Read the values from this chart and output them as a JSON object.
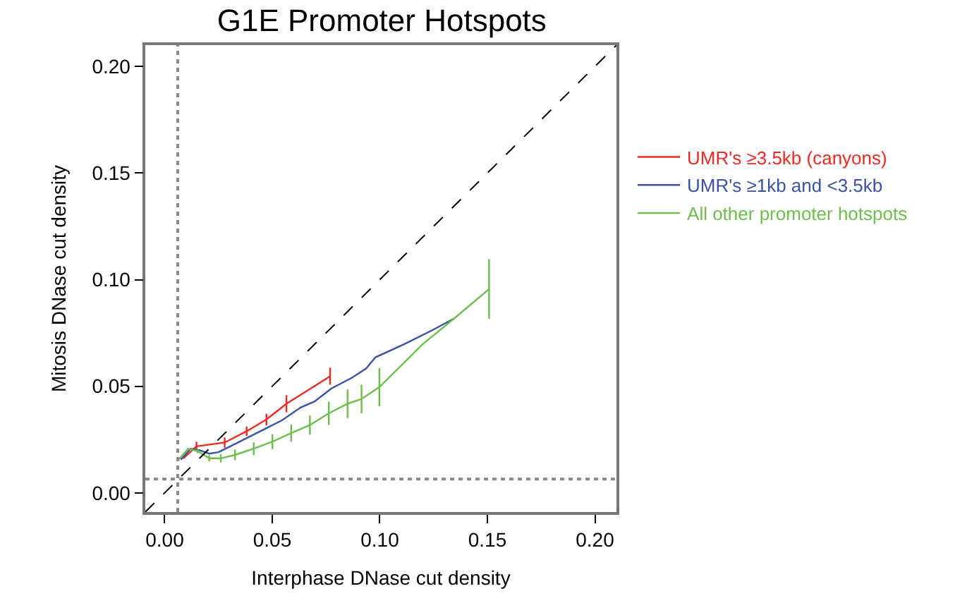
{
  "chart_data": {
    "type": "line",
    "title": "G1E Promoter Hotspots",
    "xlabel": "Interphase DNase cut density",
    "ylabel": "Mitosis DNase cut density",
    "xlim": [
      -0.009,
      0.21
    ],
    "ylim": [
      -0.009,
      0.21
    ],
    "xticks": [
      {
        "value": 0,
        "label": "0.00"
      },
      0.05,
      {
        "value": 0.1,
        "label": "0.10"
      },
      0.15,
      {
        "value": 0.2,
        "label": "0.20"
      }
    ],
    "yticks": [
      {
        "value": 0,
        "label": "0.00"
      },
      0.05,
      {
        "value": 0.1,
        "label": "0.10"
      },
      0.15,
      {
        "value": 0.2,
        "label": "0.20"
      }
    ],
    "legend": "right",
    "series": [
      {
        "name": "UMR's ≥3.5kb (canyons)",
        "color": "#ee2a24",
        "x": [
          0.0087,
          0.0148,
          0.0279,
          0.0381,
          0.0473,
          0.0566,
          0.0769
        ],
        "values": [
          0.0162,
          0.0218,
          0.0236,
          0.0289,
          0.0344,
          0.0418,
          0.0547
        ],
        "errors": [
          null,
          0.0022,
          0.0024,
          0.0022,
          0.0027,
          0.004,
          0.004
        ]
      },
      {
        "name": "UMR's ≥1kb and <3.5kb",
        "color": "#3a53a4",
        "x": [
          0.0076,
          0.012,
          0.0163,
          0.0207,
          0.025,
          0.0305,
          0.037,
          0.0458,
          0.0545,
          0.0632,
          0.0697,
          0.0774,
          0.0871,
          0.0937,
          0.098,
          0.1111,
          0.1242,
          0.1346
        ],
        "values": [
          0.0156,
          0.0207,
          0.02,
          0.0184,
          0.0191,
          0.0218,
          0.0251,
          0.0296,
          0.034,
          0.04,
          0.0429,
          0.0489,
          0.054,
          0.0584,
          0.0636,
          0.0696,
          0.0762,
          0.0818
        ]
      },
      {
        "name": "All other promoter hotspots",
        "color": "#6cbf4a",
        "x": [
          0.0065,
          0.0109,
          0.0153,
          0.0207,
          0.0261,
          0.0327,
          0.0414,
          0.0501,
          0.0588,
          0.0675,
          0.0763,
          0.085,
          0.0915,
          0.0998,
          0.1198,
          0.1346,
          0.1508
        ],
        "values": [
          0.0156,
          0.0207,
          0.0196,
          0.0162,
          0.0162,
          0.0178,
          0.0207,
          0.024,
          0.028,
          0.0318,
          0.0373,
          0.0418,
          0.044,
          0.0496,
          0.0696,
          0.0818,
          0.0956
        ],
        "errors": [
          null,
          null,
          0.001,
          0.0015,
          0.002,
          0.0025,
          0.003,
          0.0035,
          0.004,
          0.0045,
          0.0055,
          0.0067,
          0.0067,
          0.009,
          null,
          null,
          0.014
        ]
      },
      {
        "type": "line",
        "color": "#000000",
        "line_style": "dashed",
        "x": [
          -0.009,
          0.21
        ],
        "values": [
          -0.009,
          0.21
        ]
      }
    ],
    "ref_lines": [
      {
        "axis": "x",
        "value": 0.0061,
        "color": "#888888",
        "line_style": "dotted"
      },
      {
        "axis": "y",
        "value": 0.0065,
        "color": "#888888",
        "line_style": "dotted"
      }
    ]
  }
}
